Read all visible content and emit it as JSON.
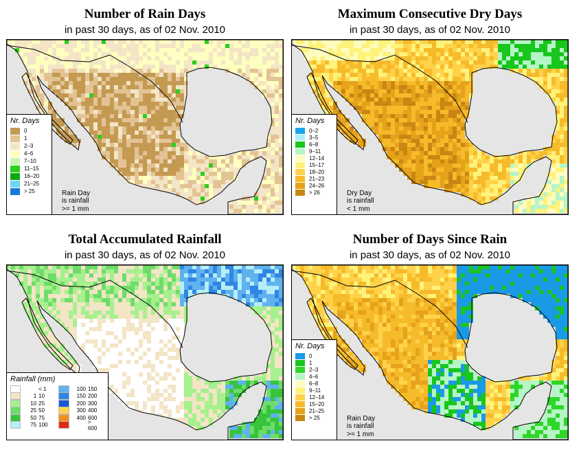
{
  "panels": [
    {
      "title": "Number of Rain Days",
      "subtitle": "in past 30 days, as of  02 Nov. 2010",
      "legend_title": "Nr. Days",
      "legend": [
        {
          "label": "0",
          "color": "#c49a52"
        },
        {
          "label": "1",
          "color": "#e3c394"
        },
        {
          "label": "2–3",
          "color": "#f3e5c6"
        },
        {
          "label": "4–6",
          "color": "#ffffc0"
        },
        {
          "label": "7–10",
          "color": "#c8f5b4"
        },
        {
          "label": "11–15",
          "color": "#2ece1c"
        },
        {
          "label": "16–20",
          "color": "#0fa612"
        },
        {
          "label": "21–25",
          "color": "#6ed6f2"
        },
        {
          "label": "> 25",
          "color": "#1877d8"
        }
      ],
      "note": [
        "Rain Day",
        "is rainfall",
        ">= 1 mm"
      ]
    },
    {
      "title": "Maximum Consecutive Dry Days",
      "subtitle": "in past 30 days, as of  02 Nov. 2010",
      "legend_title": "Nr. Days",
      "legend": [
        {
          "label": "0–2",
          "color": "#1aa6ef"
        },
        {
          "label": "3–5",
          "color": "#aeeef7"
        },
        {
          "label": "6–8",
          "color": "#18c61e"
        },
        {
          "label": "9–11",
          "color": "#b6f5c6"
        },
        {
          "label": "12–14",
          "color": "#fffcc0"
        },
        {
          "label": "15–17",
          "color": "#fff27a"
        },
        {
          "label": "18–20",
          "color": "#ffd24a"
        },
        {
          "label": "21–23",
          "color": "#f6bb2a"
        },
        {
          "label": "24–26",
          "color": "#e5a21a"
        },
        {
          "label": "> 26",
          "color": "#c98612"
        }
      ],
      "note": [
        "Dry Day",
        "is rainfall",
        "< 1 mm"
      ]
    },
    {
      "title": "Total Accumulated Rainfall",
      "subtitle": "in past 30 days, as of  02 Nov. 2010",
      "legend_title": "Rainfall (mm)",
      "legend_left": [
        {
          "lo": "",
          "hi": "< 1",
          "color": "#ffffff"
        },
        {
          "lo": "1",
          "hi": "10",
          "color": "#f3e5c6"
        },
        {
          "lo": "10",
          "hi": "25",
          "color": "#a6f08e"
        },
        {
          "lo": "25",
          "hi": "50",
          "color": "#6fdc6a"
        },
        {
          "lo": "50",
          "hi": "75",
          "color": "#36c43c"
        },
        {
          "lo": "75",
          "hi": "100",
          "color": "#b6eef8"
        }
      ],
      "legend_right": [
        {
          "lo": "100",
          "hi": "150",
          "color": "#5fb2ee"
        },
        {
          "lo": "150",
          "hi": "200",
          "color": "#2f86e6"
        },
        {
          "lo": "200",
          "hi": "300",
          "color": "#1a56d6"
        },
        {
          "lo": "300",
          "hi": "400",
          "color": "#ffd24a"
        },
        {
          "lo": "400",
          "hi": "600",
          "color": "#f48f1a"
        },
        {
          "lo": "",
          "hi": "> 600",
          "color": "#e02a14"
        }
      ]
    },
    {
      "title": "Number of Days Since Rain",
      "subtitle": "in past 30 days, as of  02 Nov. 2010",
      "legend_title": "Nr. Days",
      "legend": [
        {
          "label": "0",
          "color": "#1a9ae6"
        },
        {
          "label": "1",
          "color": "#18c61e"
        },
        {
          "label": "2–3",
          "color": "#2fd62a"
        },
        {
          "label": "4–6",
          "color": "#b6f5c6"
        },
        {
          "label": "6–8",
          "color": "#fffcc0"
        },
        {
          "label": "9–11",
          "color": "#fff27a"
        },
        {
          "label": "12–14",
          "color": "#ffd24a"
        },
        {
          "label": "15–20",
          "color": "#f6bb2a"
        },
        {
          "label": "21–25",
          "color": "#e5a21a"
        },
        {
          "label": "> 25",
          "color": "#c98612"
        }
      ],
      "note": [
        "Rain Day",
        "is rainfall",
        ">= 1 mm"
      ]
    }
  ],
  "map_colors": {
    "ocean": "#e5e5e5",
    "border": "#000000"
  }
}
